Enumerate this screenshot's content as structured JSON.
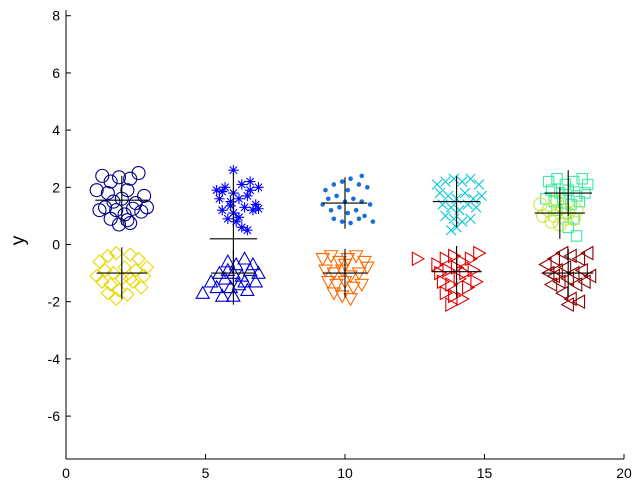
{
  "chart_data": {
    "type": "scatter",
    "title": "",
    "xlabel": "",
    "ylabel": "y",
    "xlim": [
      0,
      20
    ],
    "ylim": [
      -7.5,
      8.2
    ],
    "xticks": [
      "0",
      "5",
      "10",
      "15",
      "20"
    ],
    "yticks": [
      "-6",
      "-4",
      "-2",
      "0",
      "2",
      "4",
      "6",
      "8"
    ],
    "grid": false,
    "legend": "none",
    "series": [
      {
        "marker": "circle",
        "color": "#00008b",
        "center": [
          2,
          1.55
        ],
        "err": [
          0.95,
          0.85
        ],
        "points": [
          [
            1.1,
            1.9
          ],
          [
            1.3,
            2.4
          ],
          [
            1.6,
            2.2
          ],
          [
            1.9,
            2.35
          ],
          [
            2.3,
            2.3
          ],
          [
            2.6,
            2.5
          ],
          [
            1.5,
            1.8
          ],
          [
            2.2,
            1.9
          ],
          [
            2.8,
            1.7
          ],
          [
            1.7,
            1.5
          ],
          [
            2.0,
            1.6
          ],
          [
            2.5,
            1.45
          ],
          [
            1.4,
            1.3
          ],
          [
            2.4,
            1.25
          ],
          [
            1.8,
            1.2
          ],
          [
            2.1,
            1.05
          ],
          [
            2.7,
            1.15
          ],
          [
            1.6,
            0.9
          ],
          [
            2.2,
            0.85
          ],
          [
            1.9,
            0.7
          ],
          [
            2.3,
            0.75
          ],
          [
            2.9,
            1.3
          ],
          [
            1.2,
            1.2
          ]
        ]
      },
      {
        "marker": "diamond",
        "color": "#e8d800",
        "center": [
          2,
          -1.0
        ],
        "err": [
          0.9,
          0.9
        ],
        "points": [
          [
            1.2,
            -0.6
          ],
          [
            1.5,
            -0.4
          ],
          [
            1.8,
            -0.3
          ],
          [
            2.3,
            -0.35
          ],
          [
            2.6,
            -0.5
          ],
          [
            1.4,
            -0.9
          ],
          [
            1.7,
            -1.0
          ],
          [
            2.1,
            -0.8
          ],
          [
            2.5,
            -0.9
          ],
          [
            2.8,
            -1.1
          ],
          [
            1.3,
            -1.3
          ],
          [
            1.6,
            -1.4
          ],
          [
            2.0,
            -1.2
          ],
          [
            2.4,
            -1.3
          ],
          [
            2.7,
            -1.5
          ],
          [
            1.5,
            -1.7
          ],
          [
            1.9,
            -1.6
          ],
          [
            2.2,
            -1.75
          ],
          [
            1.8,
            -1.9
          ],
          [
            2.3,
            -1.2
          ],
          [
            1.1,
            -1.1
          ],
          [
            2.9,
            -0.8
          ]
        ]
      },
      {
        "marker": "asterisk",
        "color": "#0000ff",
        "center": [
          6,
          0.2
        ],
        "err": [
          0.85,
          2.3
        ],
        "points": [
          [
            5.4,
            1.9
          ],
          [
            5.7,
            2.0
          ],
          [
            6.0,
            1.8
          ],
          [
            6.3,
            2.1
          ],
          [
            6.6,
            1.9
          ],
          [
            6.9,
            2.0
          ],
          [
            5.5,
            1.6
          ],
          [
            5.9,
            1.5
          ],
          [
            6.2,
            1.6
          ],
          [
            6.5,
            1.7
          ],
          [
            6.8,
            1.4
          ],
          [
            5.6,
            1.2
          ],
          [
            6.0,
            1.1
          ],
          [
            6.4,
            1.3
          ],
          [
            6.7,
            1.2
          ],
          [
            5.8,
            0.9
          ],
          [
            6.1,
            0.8
          ],
          [
            6.3,
            0.6
          ],
          [
            6.5,
            0.5
          ],
          [
            5.9,
            1.35
          ],
          [
            6.6,
            2.2
          ],
          [
            5.6,
            1.85
          ],
          [
            6.0,
            2.6
          ],
          [
            6.9,
            1.25
          ],
          [
            6.2,
            0.95
          ]
        ]
      },
      {
        "marker": "triangle-up",
        "color": "#0000cd",
        "center": [
          6,
          -1.0
        ],
        "err": [
          0.8,
          0.8
        ],
        "points": [
          [
            5.2,
            -1.3
          ],
          [
            5.5,
            -1.0
          ],
          [
            5.8,
            -0.6
          ],
          [
            6.1,
            -0.7
          ],
          [
            6.4,
            -0.5
          ],
          [
            6.7,
            -0.7
          ],
          [
            5.4,
            -1.5
          ],
          [
            5.7,
            -1.2
          ],
          [
            6.0,
            -1.0
          ],
          [
            6.3,
            -1.1
          ],
          [
            6.6,
            -0.9
          ],
          [
            6.9,
            -1.0
          ],
          [
            5.6,
            -1.8
          ],
          [
            5.9,
            -1.5
          ],
          [
            6.2,
            -1.4
          ],
          [
            6.5,
            -1.6
          ],
          [
            6.8,
            -1.3
          ],
          [
            4.9,
            -1.7
          ],
          [
            6.0,
            -1.8
          ],
          [
            6.4,
            -1.3
          ],
          [
            5.8,
            -0.9
          ]
        ]
      },
      {
        "marker": "point",
        "color": "#1a6ed8",
        "center": [
          10,
          1.45
        ],
        "err": [
          0.8,
          0.9
        ],
        "points": [
          [
            9.3,
            1.9
          ],
          [
            9.6,
            2.1
          ],
          [
            9.9,
            2.2
          ],
          [
            10.2,
            2.3
          ],
          [
            10.5,
            2.1
          ],
          [
            10.8,
            2.0
          ],
          [
            9.4,
            1.6
          ],
          [
            9.7,
            1.7
          ],
          [
            10.0,
            1.5
          ],
          [
            10.3,
            1.6
          ],
          [
            10.6,
            1.5
          ],
          [
            10.9,
            1.4
          ],
          [
            9.5,
            1.2
          ],
          [
            9.8,
            1.3
          ],
          [
            10.1,
            1.1
          ],
          [
            10.4,
            1.2
          ],
          [
            10.7,
            1.0
          ],
          [
            9.6,
            0.9
          ],
          [
            9.9,
            0.8
          ],
          [
            10.2,
            0.75
          ],
          [
            10.5,
            0.9
          ],
          [
            11.0,
            0.8
          ],
          [
            9.2,
            1.4
          ],
          [
            10.1,
            1.9
          ],
          [
            10.6,
            2.4
          ]
        ]
      },
      {
        "marker": "triangle-down",
        "color": "#ff6a00",
        "center": [
          10,
          -1.0
        ],
        "err": [
          0.8,
          0.85
        ],
        "points": [
          [
            9.2,
            -0.5
          ],
          [
            9.5,
            -0.4
          ],
          [
            9.8,
            -0.6
          ],
          [
            10.1,
            -0.5
          ],
          [
            10.4,
            -0.4
          ],
          [
            10.7,
            -0.6
          ],
          [
            9.3,
            -0.9
          ],
          [
            9.6,
            -1.0
          ],
          [
            9.9,
            -0.9
          ],
          [
            10.2,
            -1.1
          ],
          [
            10.5,
            -1.0
          ],
          [
            10.8,
            -0.8
          ],
          [
            9.4,
            -1.3
          ],
          [
            9.7,
            -1.4
          ],
          [
            10.0,
            -1.3
          ],
          [
            10.3,
            -1.5
          ],
          [
            10.6,
            -1.4
          ],
          [
            9.6,
            -1.7
          ],
          [
            9.9,
            -1.8
          ],
          [
            10.2,
            -1.9
          ],
          [
            10.0,
            -0.7
          ]
        ]
      },
      {
        "marker": "x",
        "color": "#00c8d8",
        "center": [
          14,
          1.5
        ],
        "err": [
          0.85,
          0.9
        ],
        "points": [
          [
            13.3,
            2.1
          ],
          [
            13.6,
            2.2
          ],
          [
            13.9,
            2.3
          ],
          [
            14.2,
            2.2
          ],
          [
            14.5,
            2.3
          ],
          [
            14.8,
            2.1
          ],
          [
            13.4,
            1.8
          ],
          [
            13.7,
            1.7
          ],
          [
            14.0,
            1.6
          ],
          [
            14.3,
            1.8
          ],
          [
            14.6,
            1.6
          ],
          [
            14.9,
            1.7
          ],
          [
            13.5,
            1.4
          ],
          [
            13.8,
            1.3
          ],
          [
            14.1,
            1.2
          ],
          [
            14.4,
            1.4
          ],
          [
            14.7,
            1.3
          ],
          [
            13.6,
            1.0
          ],
          [
            13.9,
            0.9
          ],
          [
            14.2,
            0.8
          ],
          [
            14.5,
            0.9
          ],
          [
            14.0,
            0.6
          ],
          [
            13.8,
            0.5
          ]
        ]
      },
      {
        "marker": "triangle-right",
        "color": "#e00000",
        "center": [
          14,
          -0.95
        ],
        "err": [
          0.9,
          0.9
        ],
        "points": [
          [
            12.6,
            -0.5
          ],
          [
            13.3,
            -0.7
          ],
          [
            13.6,
            -0.5
          ],
          [
            13.9,
            -0.4
          ],
          [
            14.2,
            -0.6
          ],
          [
            14.5,
            -0.5
          ],
          [
            14.8,
            -0.3
          ],
          [
            13.4,
            -1.0
          ],
          [
            13.7,
            -0.9
          ],
          [
            14.0,
            -0.8
          ],
          [
            14.3,
            -1.0
          ],
          [
            14.6,
            -0.9
          ],
          [
            13.5,
            -1.3
          ],
          [
            13.8,
            -1.4
          ],
          [
            14.1,
            -1.2
          ],
          [
            14.4,
            -1.5
          ],
          [
            14.7,
            -1.3
          ],
          [
            13.6,
            -1.7
          ],
          [
            13.9,
            -1.8
          ],
          [
            14.2,
            -1.9
          ],
          [
            13.8,
            -2.1
          ]
        ]
      },
      {
        "marker": "square",
        "color": "#40e8a0",
        "center": [
          18,
          1.8
        ],
        "err": [
          0.85,
          0.8
        ],
        "points": [
          [
            17.3,
            2.2
          ],
          [
            17.6,
            2.3
          ],
          [
            17.9,
            2.1
          ],
          [
            18.2,
            2.2
          ],
          [
            18.5,
            2.3
          ],
          [
            18.7,
            2.1
          ],
          [
            17.4,
            1.9
          ],
          [
            17.7,
            1.8
          ],
          [
            18.0,
            1.9
          ],
          [
            18.3,
            1.7
          ],
          [
            18.6,
            1.8
          ],
          [
            17.5,
            1.5
          ],
          [
            17.8,
            1.6
          ],
          [
            18.1,
            1.4
          ],
          [
            18.4,
            1.5
          ],
          [
            17.6,
            1.2
          ],
          [
            17.9,
            1.1
          ],
          [
            18.2,
            0.9
          ],
          [
            18.0,
            0.6
          ],
          [
            18.3,
            0.3
          ],
          [
            17.2,
            1.6
          ]
        ]
      },
      {
        "marker": "circle",
        "color": "#c8e840",
        "center": [
          17.7,
          1.1
        ],
        "err": [
          0.9,
          0.9
        ],
        "points": [
          [
            17.0,
            1.4
          ],
          [
            17.3,
            1.2
          ],
          [
            17.5,
            1.0
          ],
          [
            17.8,
            1.3
          ],
          [
            18.0,
            1.1
          ],
          [
            18.2,
            0.9
          ],
          [
            17.4,
            0.8
          ],
          [
            17.7,
            0.7
          ],
          [
            17.9,
            0.9
          ],
          [
            17.1,
            1.0
          ],
          [
            18.3,
            1.2
          ],
          [
            17.6,
            1.5
          ]
        ]
      },
      {
        "marker": "triangle-left",
        "color": "#8b0000",
        "center": [
          18,
          -1.0
        ],
        "err": [
          0.9,
          0.85
        ],
        "points": [
          [
            17.2,
            -0.7
          ],
          [
            17.5,
            -0.5
          ],
          [
            17.8,
            -0.3
          ],
          [
            18.1,
            -0.4
          ],
          [
            18.4,
            -0.5
          ],
          [
            18.7,
            -0.3
          ],
          [
            17.3,
            -1.0
          ],
          [
            17.6,
            -0.9
          ],
          [
            17.9,
            -0.8
          ],
          [
            18.2,
            -1.0
          ],
          [
            18.5,
            -0.9
          ],
          [
            18.8,
            -1.1
          ],
          [
            17.4,
            -1.4
          ],
          [
            17.7,
            -1.3
          ],
          [
            18.0,
            -1.2
          ],
          [
            18.3,
            -1.4
          ],
          [
            18.6,
            -1.3
          ],
          [
            17.8,
            -1.7
          ],
          [
            18.1,
            -1.9
          ],
          [
            18.4,
            -2.0
          ],
          [
            18.0,
            -2.1
          ],
          [
            17.5,
            -1.1
          ]
        ]
      }
    ]
  }
}
